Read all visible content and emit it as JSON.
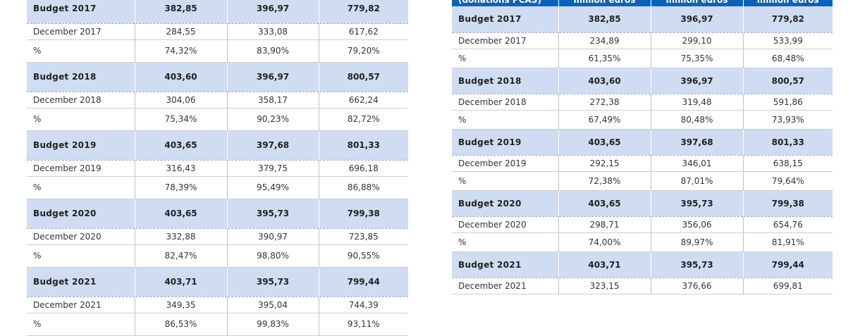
{
  "left_table": {
    "rows": [
      {
        "type": "budget",
        "label": "Budget 2017",
        "v1": "382,85",
        "v2": "396,97",
        "v3": "779,82"
      },
      {
        "type": "actual",
        "label": "December 2017",
        "v1": "284,55",
        "v2": "333,08",
        "v3": "617,62"
      },
      {
        "type": "pct",
        "label": "%",
        "v1": "74,32%",
        "v2": "83,90%",
        "v3": "79,20%"
      },
      {
        "type": "budget",
        "label": "Budget 2018",
        "v1": "403,60",
        "v2": "396,97",
        "v3": "800,57"
      },
      {
        "type": "actual",
        "label": "December 2018",
        "v1": "304,06",
        "v2": "358,17",
        "v3": "662,24"
      },
      {
        "type": "pct",
        "label": "%",
        "v1": "75,34%",
        "v2": "90,23%",
        "v3": "82,72%"
      },
      {
        "type": "budget",
        "label": "Budget 2019",
        "v1": "403,65",
        "v2": "397,68",
        "v3": "801,33"
      },
      {
        "type": "actual",
        "label": "December 2019",
        "v1": "316,43",
        "v2": "379,75",
        "v3": "696,18"
      },
      {
        "type": "pct",
        "label": "%",
        "v1": "78,39%",
        "v2": "95,49%",
        "v3": "86,88%"
      },
      {
        "type": "budget",
        "label": "Budget 2020",
        "v1": "403,65",
        "v2": "395,73",
        "v3": "799,38"
      },
      {
        "type": "actual",
        "label": "December 2020",
        "v1": "332,88",
        "v2": "390,97",
        "v3": "723,85"
      },
      {
        "type": "pct",
        "label": "%",
        "v1": "82,47%",
        "v2": "98,80%",
        "v3": "90,55%"
      },
      {
        "type": "budget",
        "label": "Budget 2021",
        "v1": "403,71",
        "v2": "395,73",
        "v3": "799,44"
      },
      {
        "type": "actual",
        "label": "December 2021",
        "v1": "349,35",
        "v2": "395,04",
        "v3": "744,39"
      },
      {
        "type": "pct",
        "label": "%",
        "v1": "86,53%",
        "v2": "99,83%",
        "v3": "93,11%"
      }
    ]
  },
  "right_table": {
    "header": {
      "label": "(donations PCAS)",
      "c1": "million euros",
      "c2": "million euros",
      "c3": "million euros"
    },
    "rows": [
      {
        "type": "budget",
        "label": "Budget 2017",
        "v1": "382,85",
        "v2": "396,97",
        "v3": "779,82"
      },
      {
        "type": "actual",
        "label": "December 2017",
        "v1": "234,89",
        "v2": "299,10",
        "v3": "533,99"
      },
      {
        "type": "pct",
        "label": "%",
        "v1": "61,35%",
        "v2": "75,35%",
        "v3": "68,48%"
      },
      {
        "type": "budget",
        "label": "Budget 2018",
        "v1": "403,60",
        "v2": "396,97",
        "v3": "800,57"
      },
      {
        "type": "actual",
        "label": "December 2018",
        "v1": "272,38",
        "v2": "319,48",
        "v3": "591,86"
      },
      {
        "type": "pct",
        "label": "%",
        "v1": "67,49%",
        "v2": "80,48%",
        "v3": "73,93%"
      },
      {
        "type": "budget",
        "label": "Budget 2019",
        "v1": "403,65",
        "v2": "397,68",
        "v3": "801,33"
      },
      {
        "type": "actual",
        "label": "December 2019",
        "v1": "292,15",
        "v2": "346,01",
        "v3": "638,15"
      },
      {
        "type": "pct",
        "label": "%",
        "v1": "72,38%",
        "v2": "87,01%",
        "v3": "79,64%"
      },
      {
        "type": "budget",
        "label": "Budget 2020",
        "v1": "403,65",
        "v2": "395,73",
        "v3": "799,38"
      },
      {
        "type": "actual",
        "label": "December 2020",
        "v1": "298,71",
        "v2": "356,06",
        "v3": "654,76"
      },
      {
        "type": "pct",
        "label": "%",
        "v1": "74,00%",
        "v2": "89,97%",
        "v3": "81,91%"
      },
      {
        "type": "budget",
        "label": "Budget 2021",
        "v1": "403,71",
        "v2": "395,73",
        "v3": "799,44"
      },
      {
        "type": "actual",
        "label": "December 2021",
        "v1": "323,15",
        "v2": "376,66",
        "v3": "699,81"
      }
    ]
  }
}
